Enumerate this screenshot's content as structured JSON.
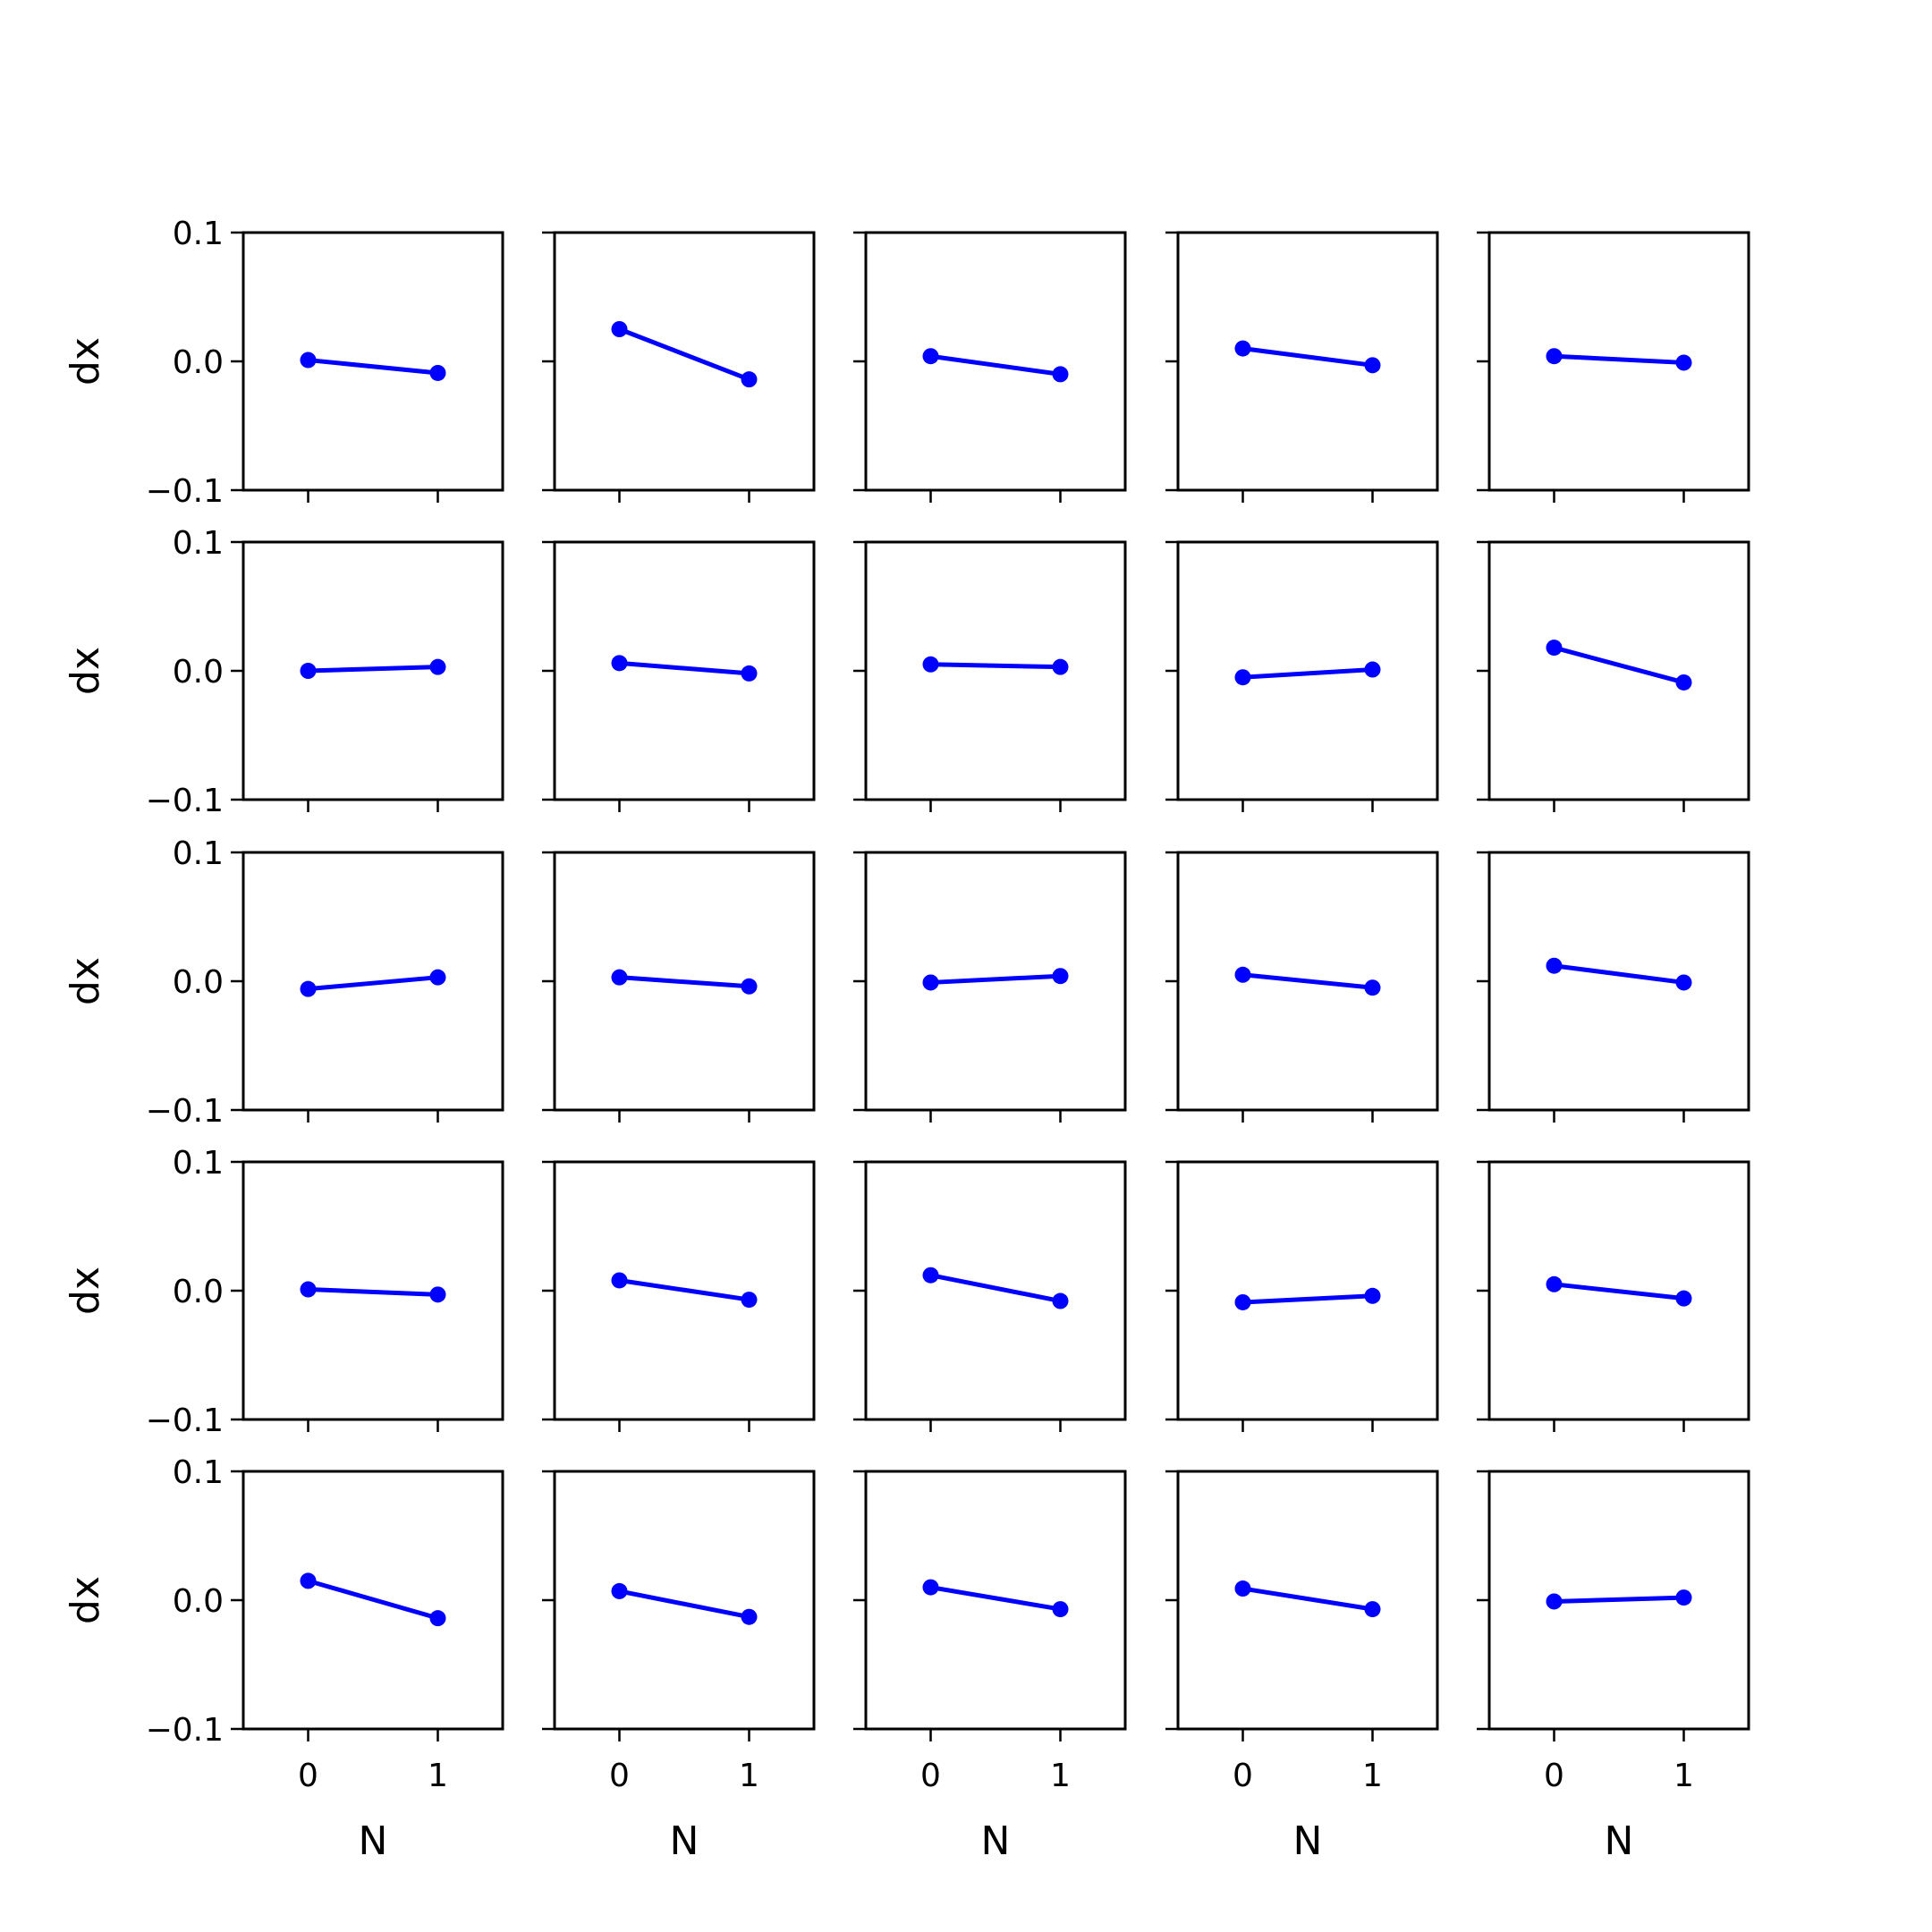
{
  "chart_data": {
    "type": "line",
    "layout": "5x5 grid of subplots with shared axes",
    "xlabel": "N",
    "ylabel": "dx",
    "x": [
      0,
      1
    ],
    "xticks": [
      0,
      1
    ],
    "xtick_labels": [
      "0",
      "1"
    ],
    "xlim": [
      -0.5,
      1.5
    ],
    "yticks": [
      -0.1,
      0.0,
      0.1
    ],
    "ytick_labels": [
      "−0.1",
      "0.0",
      "0.1"
    ],
    "ylim": [
      -0.1,
      0.1
    ],
    "grid": false,
    "color": "#0000ff",
    "marker": "circle",
    "panels": [
      [
        [
          0.001,
          -0.009
        ],
        [
          0.025,
          -0.014
        ],
        [
          0.004,
          -0.01
        ],
        [
          0.01,
          -0.003
        ],
        [
          0.004,
          -0.001
        ]
      ],
      [
        [
          0.0,
          0.003
        ],
        [
          0.006,
          -0.002
        ],
        [
          0.005,
          0.003
        ],
        [
          -0.005,
          0.001
        ],
        [
          0.018,
          -0.009
        ]
      ],
      [
        [
          -0.006,
          0.003
        ],
        [
          0.003,
          -0.004
        ],
        [
          -0.001,
          0.004
        ],
        [
          0.005,
          -0.005
        ],
        [
          0.012,
          -0.001
        ]
      ],
      [
        [
          0.001,
          -0.003
        ],
        [
          0.008,
          -0.007
        ],
        [
          0.012,
          -0.008
        ],
        [
          -0.009,
          -0.004
        ],
        [
          0.005,
          -0.006
        ]
      ],
      [
        [
          0.015,
          -0.014
        ],
        [
          0.007,
          -0.013
        ],
        [
          0.01,
          -0.007
        ],
        [
          0.009,
          -0.007
        ],
        [
          -0.001,
          0.002
        ]
      ]
    ]
  }
}
